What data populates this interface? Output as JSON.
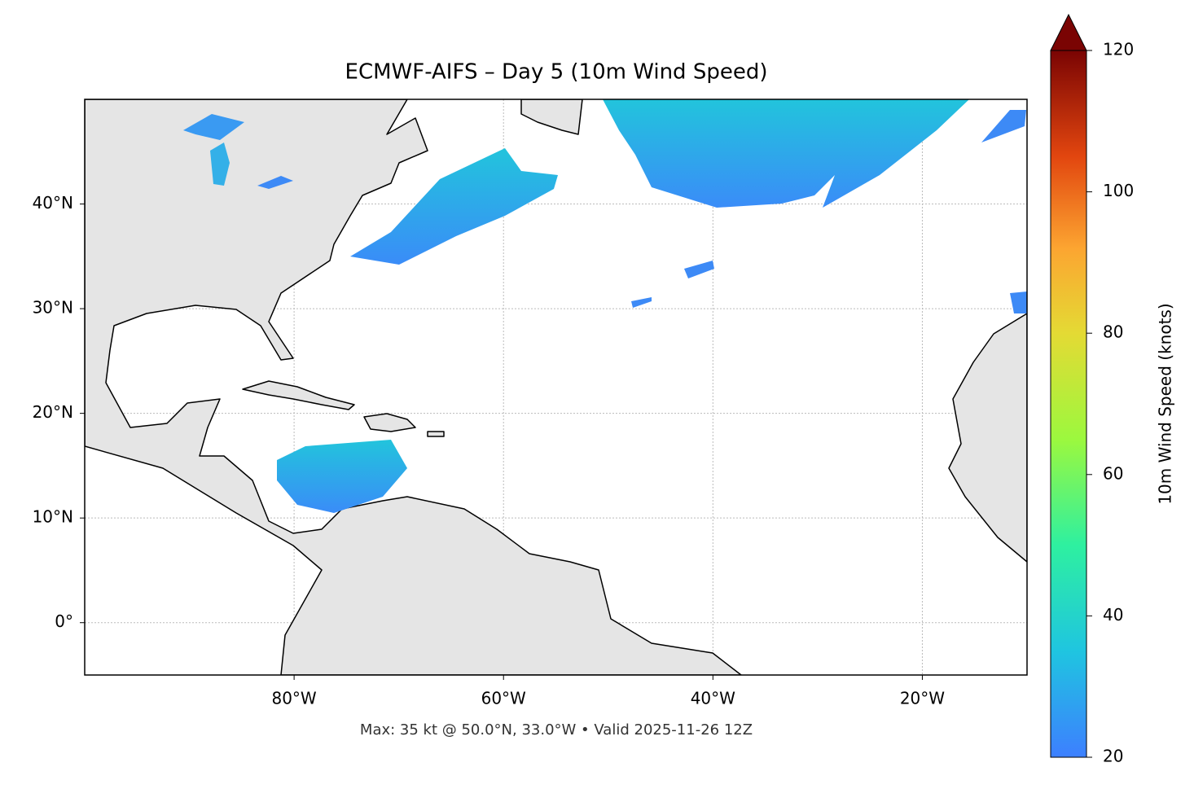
{
  "title": "ECMWF-AIFS – Day 5 (10m Wind Speed)",
  "footer": "Max: 35 kt @ 50.0°N, 33.0°W • Valid 2025-11-26 12Z",
  "map": {
    "lon_range": [
      -100,
      -10
    ],
    "lat_range": [
      -5,
      50
    ],
    "lon_ticks": [
      {
        "value": -80,
        "label": "80°W"
      },
      {
        "value": -60,
        "label": "60°W"
      },
      {
        "value": -40,
        "label": "40°W"
      },
      {
        "value": -20,
        "label": "20°W"
      }
    ],
    "lat_ticks": [
      {
        "value": 0,
        "label": "0°"
      },
      {
        "value": 10,
        "label": "10°N"
      },
      {
        "value": 20,
        "label": "20°N"
      },
      {
        "value": 30,
        "label": "30°N"
      },
      {
        "value": 40,
        "label": "40°N"
      }
    ]
  },
  "colorbar": {
    "label": "10m Wind Speed (knots)",
    "range": [
      20,
      120
    ],
    "ticks": [
      20,
      40,
      60,
      80,
      100,
      120
    ]
  }
}
